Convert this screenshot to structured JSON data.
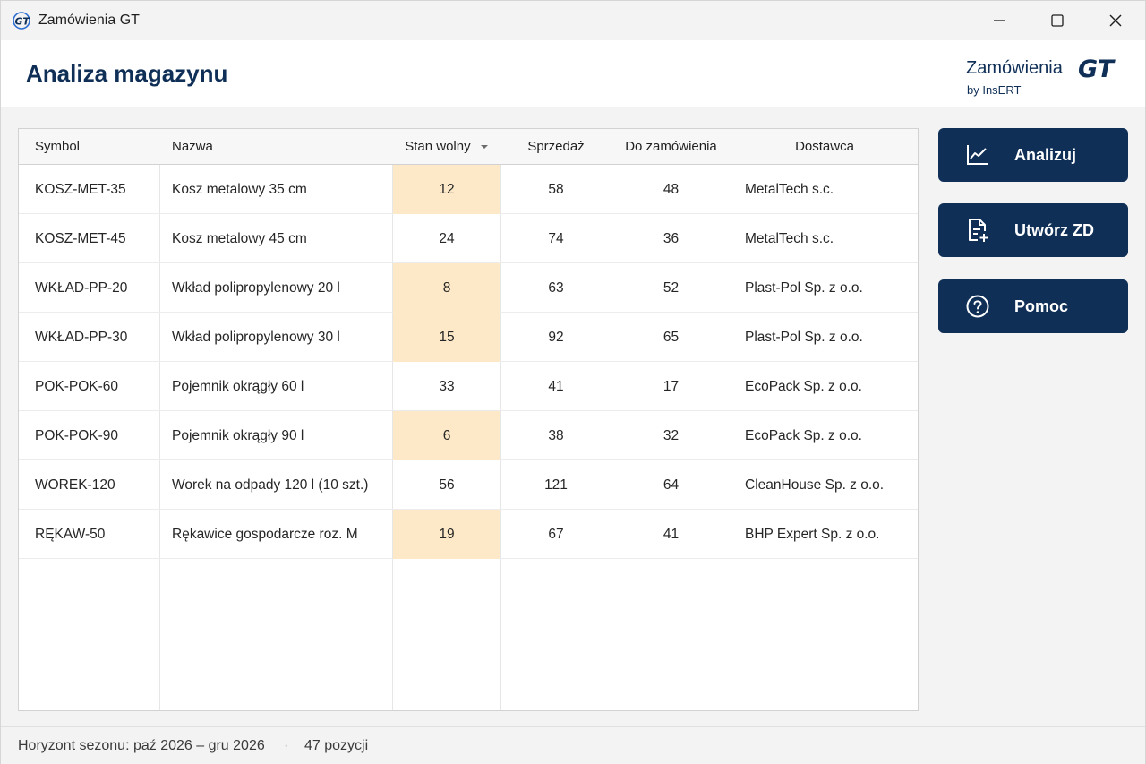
{
  "window": {
    "title": "Zamówienia GT",
    "app_icon": "gt-logo-icon"
  },
  "header": {
    "page_title": "Analiza magazynu",
    "brand_name": "Zamówienia",
    "brand_mark": "GT",
    "brand_by": "by InsERT"
  },
  "table": {
    "columns": {
      "symbol": "Symbol",
      "nazwa": "Nazwa",
      "stan": "Stan wolny",
      "sprzedaz": "Sprzedaż",
      "zamowienia": "Do zamówienia",
      "dostawca": "Dostawca"
    },
    "sort_indicator": "sort-descending-icon",
    "rows": [
      {
        "symbol": "KOSZ-MET-35",
        "nazwa": "Kosz metalowy 35 cm",
        "stan": "12",
        "sprzedaz": "58",
        "zamowienia": "48",
        "dostawca": "MetalTech s.c.",
        "low": true
      },
      {
        "symbol": "KOSZ-MET-45",
        "nazwa": "Kosz metalowy 45 cm",
        "stan": "24",
        "sprzedaz": "74",
        "zamowienia": "36",
        "dostawca": "MetalTech s.c.",
        "low": false
      },
      {
        "symbol": "WKŁAD-PP-20",
        "nazwa": "Wkład polipropylenowy 20 l",
        "stan": "8",
        "sprzedaz": "63",
        "zamowienia": "52",
        "dostawca": "Plast-Pol Sp. z o.o.",
        "low": true
      },
      {
        "symbol": "WKŁAD-PP-30",
        "nazwa": "Wkład polipropylenowy 30 l",
        "stan": "15",
        "sprzedaz": "92",
        "zamowienia": "65",
        "dostawca": "Plast-Pol Sp. z o.o.",
        "low": true
      },
      {
        "symbol": "POK-POK-60",
        "nazwa": "Pojemnik okrągły 60 l",
        "stan": "33",
        "sprzedaz": "41",
        "zamowienia": "17",
        "dostawca": "EcoPack Sp. z o.o.",
        "low": false
      },
      {
        "symbol": "POK-POK-90",
        "nazwa": "Pojemnik okrągły 90 l",
        "stan": "6",
        "sprzedaz": "38",
        "zamowienia": "32",
        "dostawca": "EcoPack Sp. z o.o.",
        "low": true
      },
      {
        "symbol": "WOREK-120",
        "nazwa": "Worek na odpady 120 l (10 szt.)",
        "stan": "56",
        "sprzedaz": "121",
        "zamowienia": "64",
        "dostawca": "CleanHouse Sp. z o.o.",
        "low": false
      },
      {
        "symbol": "RĘKAW-50",
        "nazwa": "Rękawice gospodarcze roz. M",
        "stan": "19",
        "sprzedaz": "67",
        "zamowienia": "41",
        "dostawca": "BHP Expert Sp. z o.o.",
        "low": true
      }
    ]
  },
  "actions": [
    {
      "label": "Analizuj",
      "icon": "chart-line-icon"
    },
    {
      "label": "Utwórz ZD",
      "icon": "document-add-icon"
    },
    {
      "label": "Pomoc",
      "icon": "help-icon"
    }
  ],
  "colors": {
    "accent": "#0f2f57",
    "low_stock": "#fde9c8"
  },
  "status": {
    "horizon": "Horyzont sezonu: paź 2026 – gru 2026",
    "separator": "·",
    "count": "47 pozycji"
  }
}
